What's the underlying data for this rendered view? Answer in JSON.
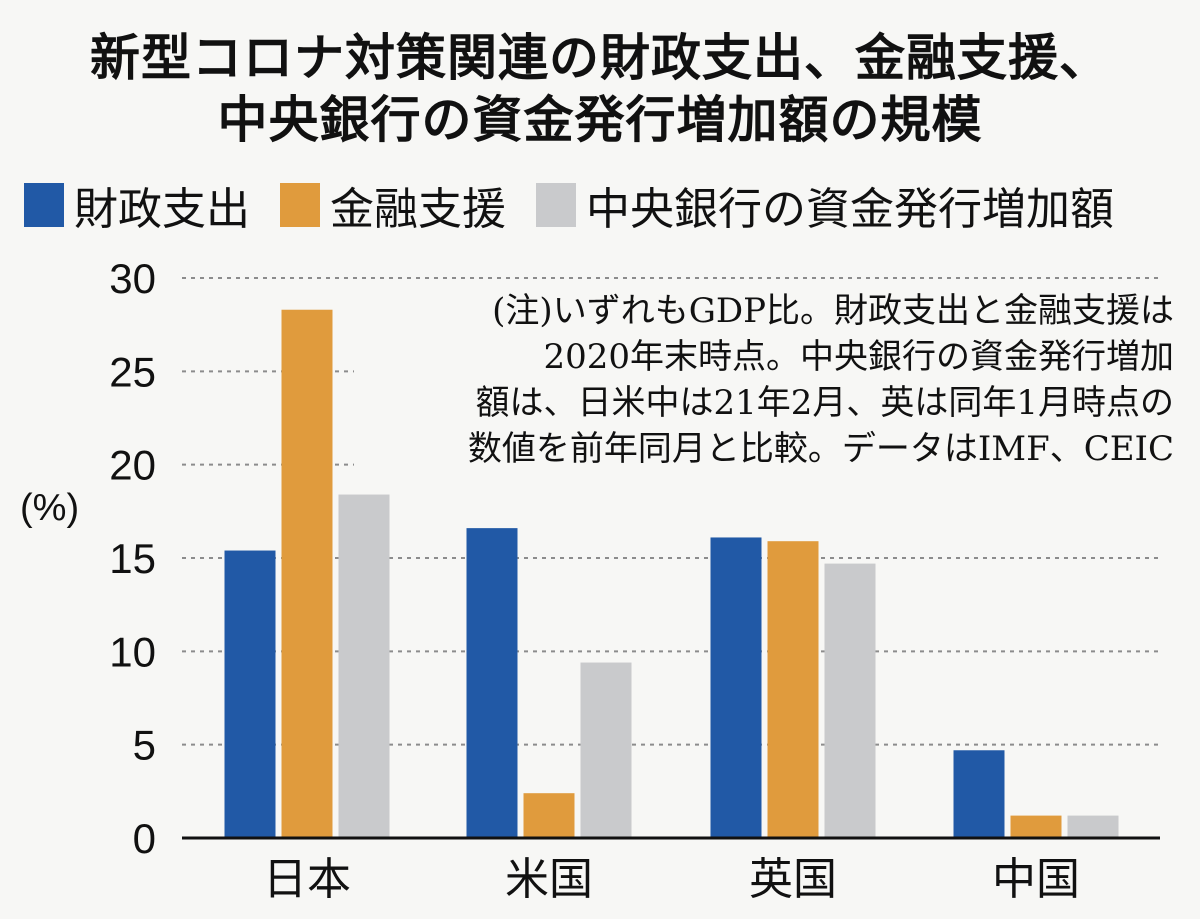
{
  "title": {
    "line1": "新型コロナ対策関連の財政支出、金融支援、",
    "line2": "中央銀行の資金発行増加額の規模"
  },
  "legend": [
    {
      "label": "財政支出",
      "color": "#2159a6"
    },
    {
      "label": "金融支援",
      "color": "#e09b3d"
    },
    {
      "label": "中央銀行の資金発行増加額",
      "color": "#c9cacc"
    }
  ],
  "note": {
    "lines": [
      "(注)いずれもGDP比。財政支出と金融支援は",
      "2020年末時点。中央銀行の資金発行増加",
      "額は、日米中は21年2月、英は同年1月時点の",
      "数値を前年同月と比較。データはIMF、CEIC"
    ]
  },
  "chart_data": {
    "type": "bar",
    "ylabel": "(%)",
    "ylim": [
      0,
      30
    ],
    "yticks": [
      0,
      5,
      10,
      15,
      20,
      25,
      30
    ],
    "grid": true,
    "categories": [
      "日本",
      "米国",
      "英国",
      "中国"
    ],
    "series": [
      {
        "name": "財政支出",
        "color": "#2159a6",
        "values": [
          15.4,
          16.6,
          16.1,
          4.7
        ]
      },
      {
        "name": "金融支援",
        "color": "#e09b3d",
        "values": [
          28.3,
          2.4,
          15.9,
          1.2
        ]
      },
      {
        "name": "中央銀行の資金発行増加額",
        "color": "#c9cacc",
        "values": [
          18.4,
          9.4,
          14.7,
          1.2
        ]
      }
    ]
  }
}
